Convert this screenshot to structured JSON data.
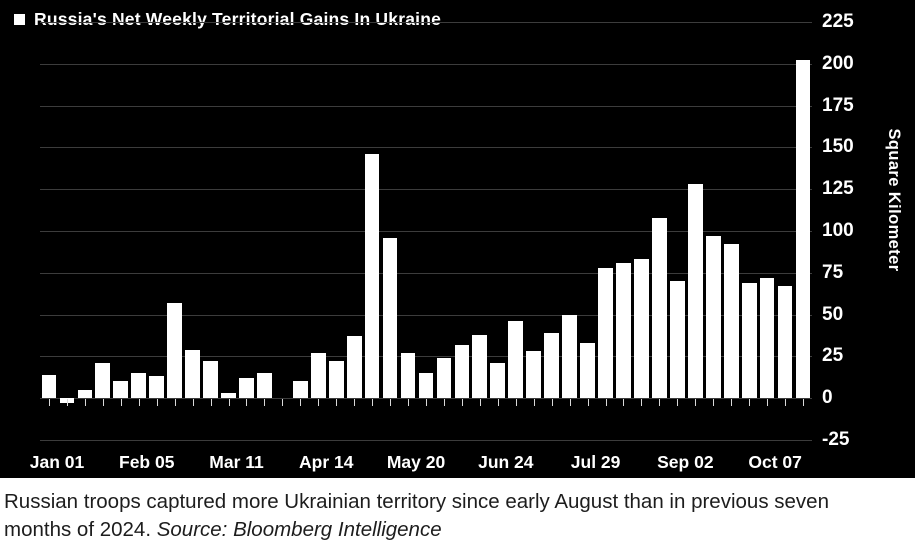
{
  "chart": {
    "title": "Russia's Net Weekly Territorial Gains In Ukraine",
    "y_axis_label": "Square Kilometer",
    "colors": {
      "background": "#000000",
      "bar": "#ffffff",
      "gridline": "#3c3c3c",
      "axis_text": "#ffffff",
      "caption_text": "#1d1d1d"
    }
  },
  "caption": {
    "line1": "Russian troops captured more Ukrainian territory since early August than in previous seven",
    "line2_regular": "months of 2024. ",
    "line2_source": "Source: Bloomberg Intelligence"
  },
  "chart_data": {
    "type": "bar",
    "title": "Russia's Net Weekly Territorial Gains In Ukraine",
    "xlabel": "",
    "ylabel": "Square Kilometer",
    "ylim": [
      -25,
      225
    ],
    "y_ticks": [
      225,
      200,
      175,
      150,
      125,
      100,
      75,
      50,
      25,
      0,
      -25
    ],
    "grid": "faint horizontal gridlines every 25, weekly tick marks under bars",
    "legend_position": "top-left",
    "x_tick_labels": [
      "Jan 01",
      "Feb 05",
      "Mar 11",
      "Apr 14",
      "May 20",
      "Jun 24",
      "Jul 29",
      "Sep 02",
      "Oct 07"
    ],
    "x_tick_indices": [
      0,
      5,
      10,
      15,
      20,
      25,
      30,
      35,
      40
    ],
    "values": [
      14,
      -3,
      5,
      21,
      10,
      15,
      13,
      57,
      29,
      22,
      3,
      12,
      15,
      0,
      10,
      27,
      22,
      37,
      146,
      96,
      27,
      15,
      24,
      32,
      38,
      21,
      46,
      28,
      39,
      50,
      33,
      78,
      81,
      83,
      108,
      70,
      128,
      97,
      92,
      69,
      72,
      67,
      202
    ]
  }
}
